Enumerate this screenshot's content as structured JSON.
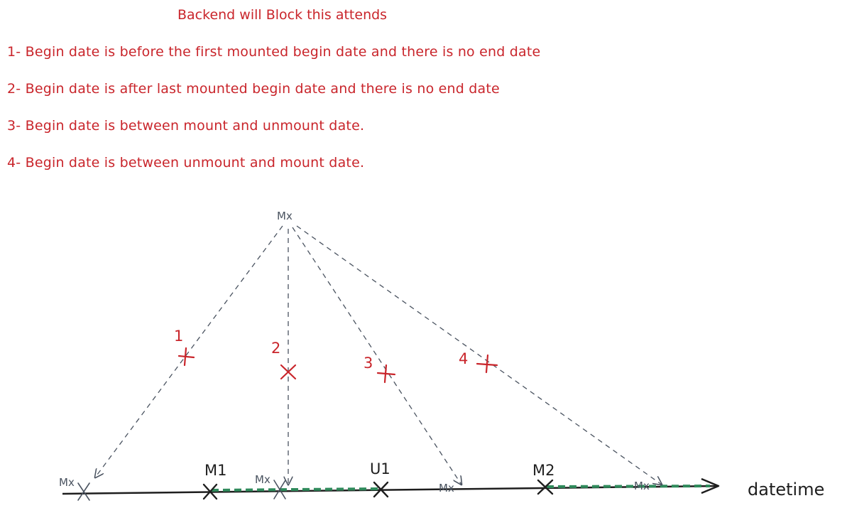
{
  "heading": "Backend will Block this attends",
  "rules": [
    "1- Begin date is before the first mounted begin date and there is no end date",
    "2- Begin date is after last mounted begin date and there is no end date",
    "3- Begin date is between mount and unmount date.",
    "4- Begin date is between unmount and mount date."
  ],
  "diagram": {
    "source_label": "Mx",
    "axis_label": "datetime",
    "axis_points": [
      "M1",
      "U1",
      "M2"
    ],
    "case_numbers": [
      "1",
      "2",
      "3",
      "4"
    ],
    "target_labels": [
      "Mx",
      "Mx",
      "Mx",
      "Mx"
    ],
    "colors": {
      "red": "#c9252b",
      "dark": "#1e1e1e",
      "grey": "#4a5360",
      "green": "#2f8a5b"
    }
  }
}
